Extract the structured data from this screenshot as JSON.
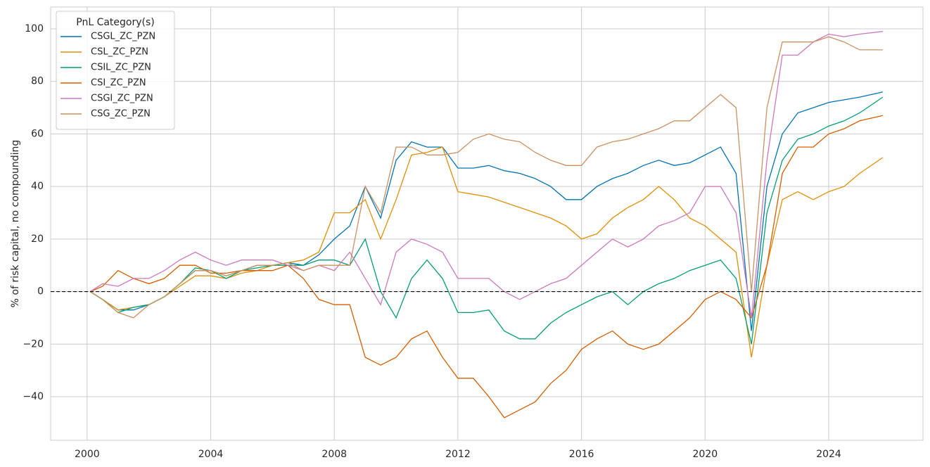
{
  "chart_data": {
    "type": "line",
    "ylabel": "% of risk capital, no compounding",
    "legend_title": "PnL Category(s)",
    "legend": "upper left",
    "grid": true,
    "hline": 0,
    "x": [
      2000.1,
      2000.5,
      2001.0,
      2001.5,
      2002.0,
      2002.5,
      2003.0,
      2003.5,
      2004.0,
      2004.5,
      2005.0,
      2005.5,
      2006.0,
      2006.5,
      2007.0,
      2007.5,
      2008.0,
      2008.5,
      2009.0,
      2009.5,
      2010.0,
      2010.5,
      2011.0,
      2011.5,
      2012.0,
      2012.5,
      2013.0,
      2013.5,
      2014.0,
      2014.5,
      2015.0,
      2015.5,
      2016.0,
      2016.5,
      2017.0,
      2017.5,
      2018.0,
      2018.5,
      2019.0,
      2019.5,
      2020.0,
      2020.5,
      2021.0,
      2021.5,
      2022.0,
      2022.5,
      2023.0,
      2023.5,
      2024.0,
      2024.5,
      2025.0,
      2025.75
    ],
    "xlim": [
      1998.82,
      2027.05
    ],
    "xticks": [
      2000,
      2004,
      2008,
      2012,
      2016,
      2020,
      2024
    ],
    "ylim": [
      -56.6,
      108.3
    ],
    "yticks": [
      {
        "value": -40,
        "label": "−40"
      },
      {
        "value": -20,
        "label": "−20"
      },
      0,
      20,
      40,
      60,
      80,
      100
    ],
    "series": [
      {
        "name": "CSGL_ZC_PZN",
        "color": "#0173b2",
        "values": [
          0,
          -3,
          -7,
          -7,
          -5,
          -2,
          3,
          8,
          8,
          6,
          8,
          10,
          10,
          11,
          10,
          14,
          20,
          25,
          40,
          28,
          50,
          57,
          55,
          55,
          47,
          47,
          48,
          46,
          45,
          43,
          40,
          35,
          35,
          40,
          43,
          45,
          48,
          50,
          48,
          49,
          52,
          55,
          45,
          -15,
          40,
          60,
          68,
          70,
          72,
          73,
          74,
          76
        ]
      },
      {
        "name": "CSL_ZC_PZN",
        "color": "#de8f05",
        "values": [
          0,
          -3,
          -7,
          -6,
          -5,
          -2,
          2,
          6,
          6,
          5,
          7,
          8,
          10,
          11,
          12,
          15,
          30,
          30,
          35,
          20,
          35,
          52,
          53,
          55,
          38,
          37,
          36,
          34,
          32,
          30,
          28,
          25,
          20,
          22,
          28,
          32,
          35,
          40,
          35,
          28,
          25,
          20,
          15,
          -25,
          10,
          35,
          38,
          35,
          38,
          40,
          45,
          51
        ]
      },
      {
        "name": "CSIL_ZC_PZN",
        "color": "#029e73",
        "values": [
          0,
          -3,
          -8,
          -6,
          -5,
          -2,
          3,
          9,
          8,
          5,
          8,
          9,
          10,
          10,
          10,
          12,
          12,
          10,
          20,
          0,
          -10,
          5,
          12,
          5,
          -8,
          -8,
          -7,
          -15,
          -18,
          -18,
          -12,
          -8,
          -5,
          -2,
          0,
          -5,
          0,
          3,
          5,
          8,
          10,
          12,
          5,
          -20,
          30,
          50,
          58,
          60,
          63,
          65,
          68,
          74
        ]
      },
      {
        "name": "CSI_ZC_PZN",
        "color": "#d55e00",
        "values": [
          0,
          2,
          8,
          5,
          3,
          5,
          10,
          10,
          7,
          7,
          8,
          8,
          8,
          10,
          5,
          -3,
          -5,
          -5,
          -25,
          -28,
          -25,
          -18,
          -15,
          -25,
          -33,
          -33,
          -40,
          -48,
          -45,
          -42,
          -35,
          -30,
          -22,
          -18,
          -15,
          -20,
          -22,
          -20,
          -15,
          -10,
          -3,
          0,
          -3,
          -10,
          10,
          45,
          55,
          55,
          60,
          62,
          65,
          67
        ]
      },
      {
        "name": "CSGI_ZC_PZN",
        "color": "#cc78bc",
        "values": [
          0,
          3,
          2,
          5,
          5,
          8,
          12,
          15,
          12,
          10,
          12,
          12,
          12,
          10,
          8,
          10,
          8,
          15,
          5,
          -5,
          15,
          20,
          18,
          15,
          5,
          5,
          5,
          0,
          -3,
          0,
          3,
          5,
          10,
          15,
          20,
          17,
          20,
          25,
          27,
          30,
          40,
          40,
          30,
          -10,
          50,
          90,
          90,
          95,
          98,
          97,
          98,
          99
        ]
      },
      {
        "name": "CSG_ZC_PZN",
        "color": "#ca9161",
        "values": [
          0,
          -3,
          -8,
          -10,
          -5,
          -2,
          3,
          8,
          8,
          6,
          8,
          10,
          10,
          11,
          8,
          10,
          10,
          10,
          40,
          30,
          55,
          55,
          52,
          52,
          53,
          58,
          60,
          58,
          57,
          53,
          50,
          48,
          48,
          55,
          57,
          58,
          60,
          62,
          65,
          65,
          70,
          75,
          70,
          0,
          70,
          95,
          95,
          95,
          97,
          95,
          92,
          92
        ]
      }
    ]
  }
}
